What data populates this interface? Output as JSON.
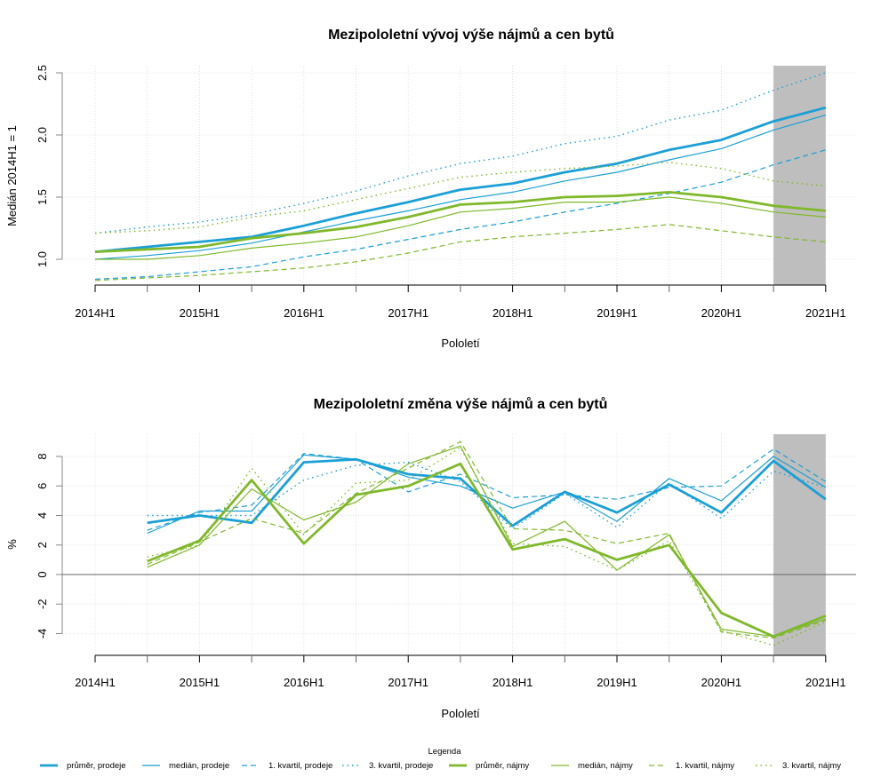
{
  "colors": {
    "prodeje": "#1b9fd6",
    "najmy": "#7fb82a",
    "shade": "#bebebe",
    "grid": "#d9d9d9"
  },
  "legend": {
    "title": "Legenda",
    "items": [
      {
        "label": "průměr, prodeje",
        "group": "prodeje",
        "style": "thick"
      },
      {
        "label": "medián, prodeje",
        "group": "prodeje",
        "style": "thin"
      },
      {
        "label": "1. kvartil, prodeje",
        "group": "prodeje",
        "style": "dashed"
      },
      {
        "label": "3. kvartil, prodeje",
        "group": "prodeje",
        "style": "dotted"
      },
      {
        "label": "průměr, nájmy",
        "group": "najmy",
        "style": "thick"
      },
      {
        "label": "medián, nájmy",
        "group": "najmy",
        "style": "thin"
      },
      {
        "label": "1. kvartil, nájmy",
        "group": "najmy",
        "style": "dashed"
      },
      {
        "label": "3. kvartil, nájmy",
        "group": "najmy",
        "style": "dotted"
      }
    ]
  },
  "chart_data": [
    {
      "type": "line",
      "title": "Mezipololetní vývoj výše nájmů a cen bytů",
      "xlabel": "Pololetí",
      "ylabel": "Medián 2014H1 = 1",
      "x": [
        "2014H1",
        "2014H2",
        "2015H1",
        "2015H2",
        "2016H1",
        "2016H2",
        "2017H1",
        "2017H2",
        "2018H1",
        "2018H2",
        "2019H1",
        "2019H2",
        "2020H1",
        "2020H2",
        "2021H1"
      ],
      "xticks": [
        "2014H1",
        "2015H1",
        "2016H1",
        "2017H1",
        "2018H1",
        "2019H1",
        "2020H1",
        "2021H1"
      ],
      "yticks": [
        "1.0",
        "1.5",
        "2.0",
        "2.5"
      ],
      "ylim": [
        0.79,
        2.53
      ],
      "shaded_range": [
        "2020H2",
        "2021H1"
      ],
      "grid": true,
      "series": [
        {
          "name": "průměr, prodeje",
          "values": [
            1.06,
            1.1,
            1.14,
            1.18,
            1.27,
            1.37,
            1.46,
            1.56,
            1.61,
            1.7,
            1.77,
            1.88,
            1.96,
            2.11,
            2.22
          ]
        },
        {
          "name": "medián, prodeje",
          "values": [
            1.0,
            1.03,
            1.07,
            1.13,
            1.22,
            1.31,
            1.39,
            1.48,
            1.54,
            1.63,
            1.7,
            1.8,
            1.89,
            2.04,
            2.16
          ]
        },
        {
          "name": "1. kvartil, prodeje",
          "values": [
            0.84,
            0.86,
            0.9,
            0.94,
            1.02,
            1.08,
            1.16,
            1.24,
            1.3,
            1.38,
            1.45,
            1.53,
            1.62,
            1.76,
            1.88
          ]
        },
        {
          "name": "3. kvartil, prodeje",
          "values": [
            1.21,
            1.26,
            1.3,
            1.36,
            1.45,
            1.55,
            1.67,
            1.77,
            1.83,
            1.93,
            1.99,
            2.12,
            2.2,
            2.36,
            2.5
          ]
        },
        {
          "name": "průměr, nájmy",
          "values": [
            1.06,
            1.08,
            1.1,
            1.17,
            1.21,
            1.26,
            1.34,
            1.44,
            1.46,
            1.5,
            1.51,
            1.54,
            1.5,
            1.43,
            1.39
          ]
        },
        {
          "name": "medián, nájmy",
          "values": [
            1.0,
            1.0,
            1.03,
            1.09,
            1.13,
            1.18,
            1.27,
            1.38,
            1.41,
            1.46,
            1.46,
            1.5,
            1.45,
            1.38,
            1.34
          ]
        },
        {
          "name": "1. kvartil, nájmy",
          "values": [
            0.83,
            0.85,
            0.87,
            0.9,
            0.93,
            0.98,
            1.05,
            1.14,
            1.18,
            1.21,
            1.24,
            1.28,
            1.23,
            1.18,
            1.14
          ]
        },
        {
          "name": "3. kvartil, nájmy",
          "values": [
            1.21,
            1.23,
            1.26,
            1.34,
            1.39,
            1.48,
            1.57,
            1.66,
            1.7,
            1.73,
            1.75,
            1.78,
            1.73,
            1.63,
            1.59
          ]
        }
      ]
    },
    {
      "type": "line",
      "title": "Mezipololetní změna výše nájmů a cen bytů",
      "xlabel": "Pololetí",
      "ylabel": "%",
      "x": [
        "2014H1",
        "2014H2",
        "2015H1",
        "2015H2",
        "2016H1",
        "2016H2",
        "2017H1",
        "2017H2",
        "2018H1",
        "2018H2",
        "2019H1",
        "2019H2",
        "2020H1",
        "2020H2",
        "2021H1"
      ],
      "xticks": [
        "2014H1",
        "2015H1",
        "2016H1",
        "2017H1",
        "2018H1",
        "2019H1",
        "2020H1",
        "2021H1"
      ],
      "yticks": [
        "-4",
        "-2",
        "0",
        "2",
        "4",
        "6",
        "8"
      ],
      "ylim": [
        -5.5,
        9.5
      ],
      "shaded_range": [
        "2020H2",
        "2021H1"
      ],
      "grid": true,
      "series": [
        {
          "name": "průměr, prodeje",
          "values": [
            null,
            3.5,
            4.0,
            3.5,
            7.6,
            7.8,
            6.8,
            6.5,
            3.3,
            5.6,
            4.2,
            6.1,
            4.2,
            7.7,
            5.1
          ]
        },
        {
          "name": "medián, prodeje",
          "values": [
            null,
            2.8,
            4.3,
            4.3,
            8.1,
            7.8,
            6.6,
            6.0,
            4.5,
            5.6,
            3.6,
            6.5,
            5.0,
            8.0,
            5.9
          ]
        },
        {
          "name": "1. kvartil, prodeje",
          "values": [
            null,
            3.0,
            4.2,
            4.7,
            8.2,
            7.8,
            5.6,
            6.8,
            5.2,
            5.4,
            5.1,
            5.9,
            6.0,
            8.5,
            6.3
          ]
        },
        {
          "name": "3. kvartil, prodeje",
          "values": [
            null,
            4.0,
            4.0,
            4.0,
            6.4,
            7.4,
            7.6,
            6.3,
            3.1,
            5.5,
            3.2,
            6.2,
            3.8,
            7.0,
            5.9
          ]
        },
        {
          "name": "průměr, nájmy",
          "values": [
            null,
            0.9,
            2.3,
            6.4,
            2.1,
            5.4,
            6.0,
            7.5,
            1.7,
            2.4,
            1.0,
            2.0,
            -2.6,
            -4.2,
            -2.8
          ]
        },
        {
          "name": "medián, nájmy",
          "values": [
            null,
            0.5,
            2.0,
            5.8,
            3.7,
            4.9,
            7.5,
            8.7,
            1.9,
            3.6,
            0.3,
            2.7,
            -3.7,
            -4.2,
            -3.0
          ]
        },
        {
          "name": "1. kvartil, nájmy",
          "values": [
            null,
            0.7,
            2.2,
            3.8,
            2.8,
            5.5,
            7.2,
            9.0,
            3.1,
            3.0,
            2.1,
            2.8,
            -3.9,
            -4.3,
            -3.1
          ]
        },
        {
          "name": "3. kvartil, nájmy",
          "values": [
            null,
            1.2,
            2.0,
            7.2,
            2.7,
            6.2,
            6.4,
            8.6,
            2.1,
            1.9,
            0.3,
            2.3,
            -3.8,
            -4.8,
            -3.2
          ]
        }
      ]
    }
  ]
}
